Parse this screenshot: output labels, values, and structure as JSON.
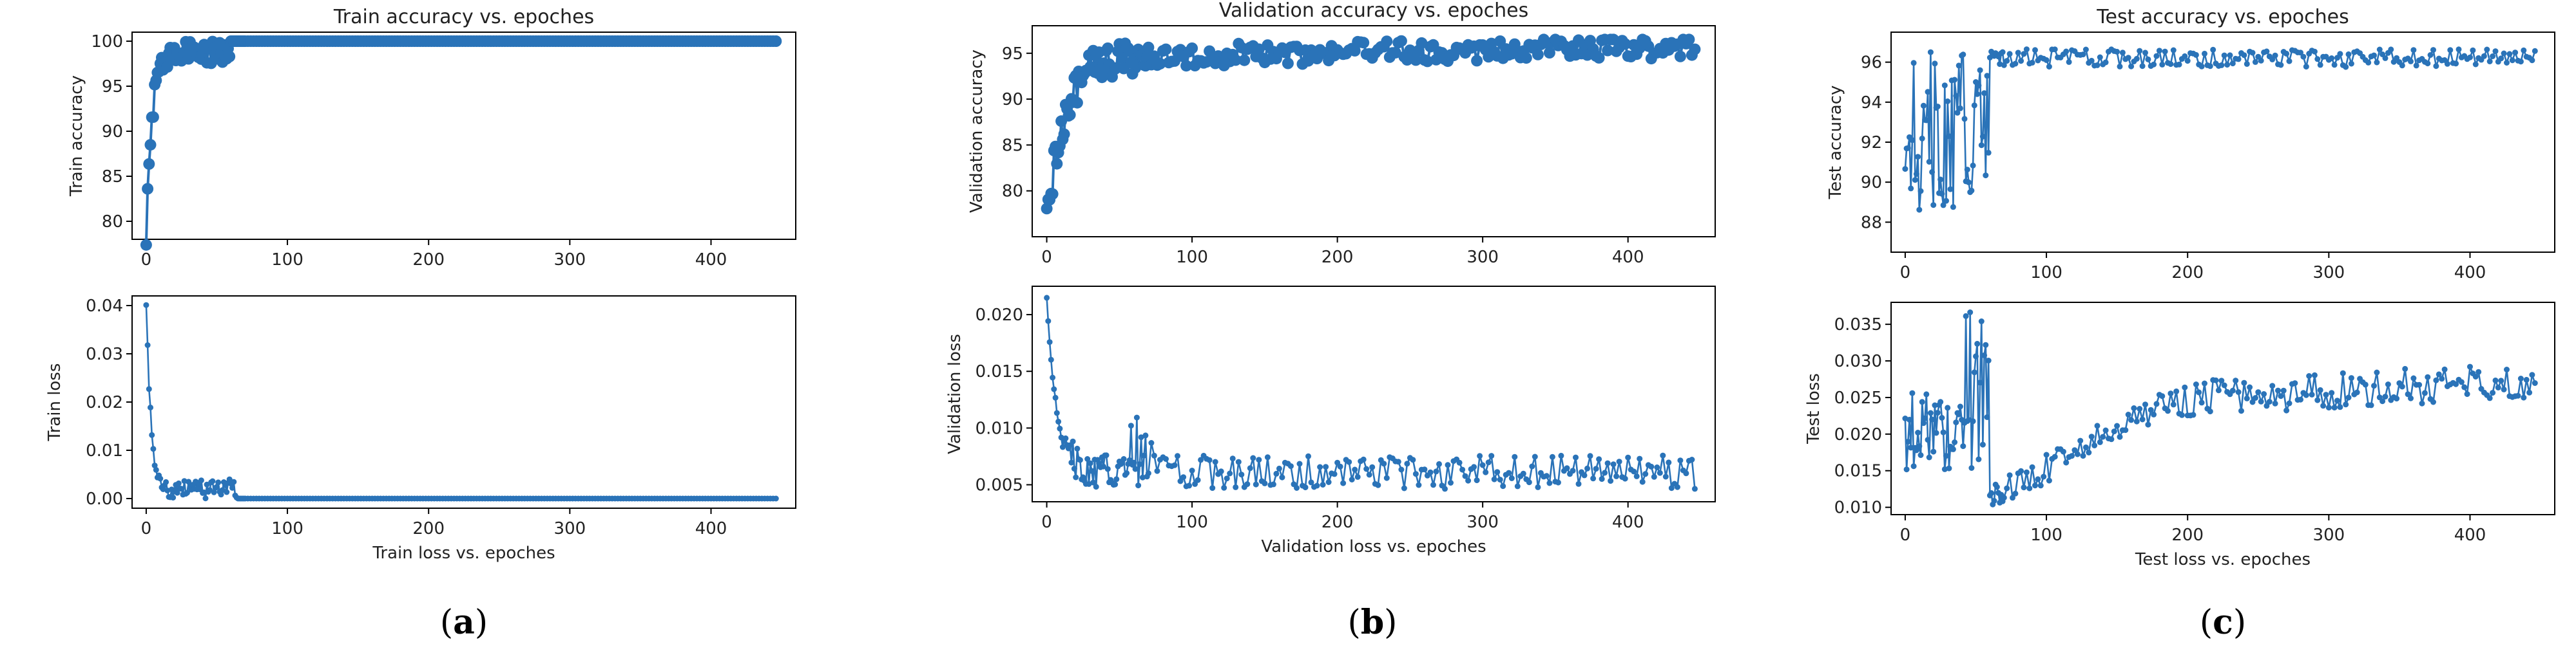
{
  "colors": {
    "series": "#2a73b8",
    "axis": "#000000",
    "text": "#222222"
  },
  "panels": [
    {
      "label": "(a)",
      "letter": "a",
      "title": "Train accuracy vs. epoches",
      "xlabel": "Train loss vs. epoches"
    },
    {
      "label": "(b)",
      "letter": "b",
      "title": "Validation accuracy vs. epoches",
      "xlabel": "Validation loss vs. epoches"
    },
    {
      "label": "(c)",
      "letter": "c",
      "title": "Test accuracy vs. epoches",
      "xlabel": "Test loss vs. epoches"
    }
  ],
  "chart_data": [
    {
      "type": "scatter",
      "panel": "a",
      "title": "Train accuracy vs. epoches",
      "xlabel": "",
      "ylabel": "Train accuracy",
      "xlim": [
        -10,
        460
      ],
      "ylim": [
        78,
        101
      ],
      "xticks": [
        0,
        100,
        200,
        300,
        400
      ],
      "yticks": [
        80,
        85,
        90,
        95,
        100
      ],
      "ytick_decimals": 0,
      "marker": "big",
      "pattern": "train_acc"
    },
    {
      "type": "line",
      "panel": "a",
      "title": "",
      "xlabel": "Train loss vs. epoches",
      "ylabel": "Train loss",
      "xlim": [
        -10,
        460
      ],
      "ylim": [
        -0.002,
        0.042
      ],
      "xticks": [
        0,
        100,
        200,
        300,
        400
      ],
      "yticks": [
        0.0,
        0.01,
        0.02,
        0.03,
        0.04
      ],
      "ytick_decimals": 2,
      "marker": "small",
      "pattern": "train_loss"
    },
    {
      "type": "scatter",
      "panel": "b",
      "title": "Validation accuracy vs. epoches",
      "xlabel": "",
      "ylabel": "Validation accuracy",
      "xlim": [
        -10,
        460
      ],
      "ylim": [
        75,
        98
      ],
      "xticks": [
        0,
        100,
        200,
        300,
        400
      ],
      "yticks": [
        80,
        85,
        90,
        95
      ],
      "ytick_decimals": 0,
      "marker": "big",
      "pattern": "val_acc"
    },
    {
      "type": "line",
      "panel": "b",
      "title": "",
      "xlabel": "Validation loss vs. epoches",
      "ylabel": "Validation loss",
      "xlim": [
        -10,
        460
      ],
      "ylim": [
        0.0035,
        0.0225
      ],
      "xticks": [
        0,
        100,
        200,
        300,
        400
      ],
      "yticks": [
        0.005,
        0.01,
        0.015,
        0.02
      ],
      "ytick_decimals": 3,
      "marker": "small",
      "pattern": "val_loss"
    },
    {
      "type": "line",
      "panel": "c",
      "title": "Test accuracy vs. epoches",
      "xlabel": "",
      "ylabel": "Test accuracy",
      "xlim": [
        -10,
        460
      ],
      "ylim": [
        86.5,
        97.5
      ],
      "xticks": [
        0,
        100,
        200,
        300,
        400
      ],
      "yticks": [
        88,
        90,
        92,
        94,
        96
      ],
      "ytick_decimals": 0,
      "marker": "small",
      "pattern": "test_acc"
    },
    {
      "type": "line",
      "panel": "c",
      "title": "",
      "xlabel": "Test loss vs. epoches",
      "ylabel": "Test loss",
      "xlim": [
        -10,
        460
      ],
      "ylim": [
        0.009,
        0.038
      ],
      "xticks": [
        0,
        100,
        200,
        300,
        400
      ],
      "yticks": [
        0.01,
        0.015,
        0.02,
        0.025,
        0.03,
        0.035
      ],
      "ytick_decimals": 3,
      "marker": "small",
      "pattern": "test_loss"
    }
  ]
}
